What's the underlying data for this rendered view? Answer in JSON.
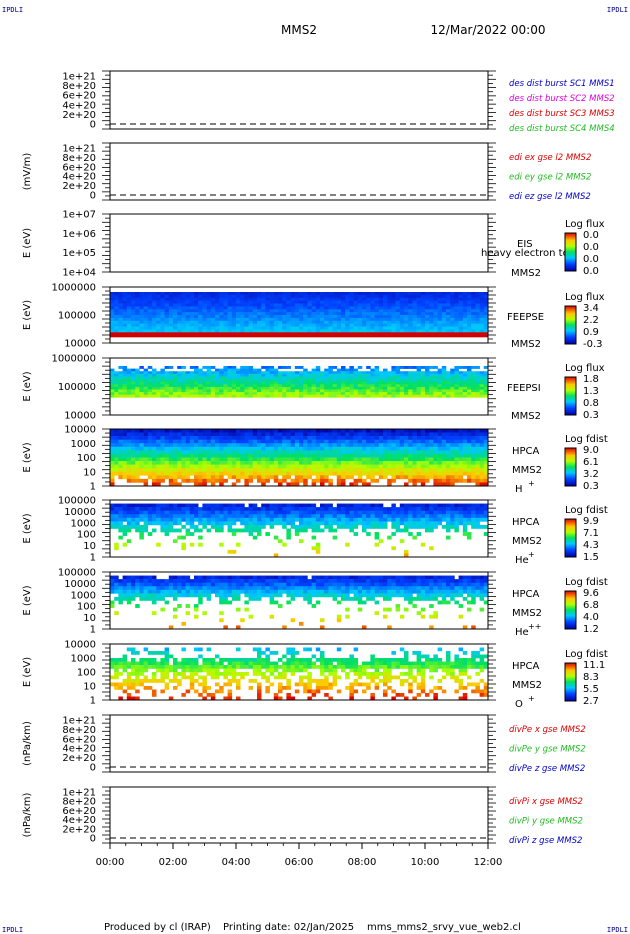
{
  "header": {
    "corner_tl": "IPDLI",
    "corner_tr": "IPDLI",
    "corner_bl": "IPDLI",
    "corner_br": "IPDLI",
    "spacecraft": "MMS2",
    "datetime": "12/Mar/2022 00:00"
  },
  "footer": {
    "produced": "Produced by cl (IRAP)",
    "printing": "Printing date: 02/Jan/2025",
    "file": "mms_mms2_srvy_vue_web2.cl"
  },
  "colors": {
    "black": "#000000",
    "red": "#dd0000",
    "green": "#22bb22",
    "blue": "#0000cc",
    "magenta": "#dd00dd"
  },
  "time_axis": {
    "start": "00:00",
    "end": "12:00",
    "ticks": [
      "00:00",
      "02:00",
      "04:00",
      "06:00",
      "08:00",
      "10:00",
      "12:00"
    ]
  },
  "chart_data": [
    {
      "id": "dist",
      "type": "line",
      "ylabel": "",
      "yticks": [
        "1e+21",
        "8e+20",
        "6e+20",
        "4e+20",
        "2e+20",
        "0"
      ],
      "legend": [
        {
          "text": "des dist burst SC1 MMS1",
          "color": "#0000cc"
        },
        {
          "text": "des dist burst SC2 MMS2",
          "color": "#dd00dd"
        },
        {
          "text": "des dist burst SC3 MMS3",
          "color": "#dd0000"
        },
        {
          "text": "des dist burst SC4 MMS4",
          "color": "#22bb22"
        }
      ]
    },
    {
      "id": "edi",
      "type": "line",
      "ylabel": "(mV/m)",
      "yticks": [
        "1e+21",
        "8e+20",
        "6e+20",
        "4e+20",
        "2e+20",
        "0"
      ],
      "legend": [
        {
          "text": "edi ex gse l2 MMS2",
          "color": "#dd0000"
        },
        {
          "text": "edi ey gse l2 MMS2",
          "color": "#22bb22"
        },
        {
          "text": "edi ez gse l2 MMS2",
          "color": "#0000cc"
        }
      ]
    },
    {
      "id": "eis",
      "type": "heatmap",
      "ylabel": "E (eV)",
      "yticks": [
        "1e+07",
        "1e+06",
        "1e+05",
        "1e+04"
      ],
      "labels": [
        "EIS",
        "heavy electron to",
        "MMS2"
      ],
      "cbar_title": "Log flux",
      "cbar_ticks": [
        "0.0",
        "0.0",
        "0.0",
        "0.0"
      ]
    },
    {
      "id": "feepse",
      "type": "heatmap",
      "ylabel": "E (eV)",
      "yticks": [
        "1000000",
        "100000",
        "10000"
      ],
      "labels": [
        "FEEPSE",
        "MMS2"
      ],
      "cbar_title": "Log flux",
      "cbar_ticks": [
        "3.4",
        "2.2",
        "0.9",
        "-0.3"
      ]
    },
    {
      "id": "feepsi",
      "type": "heatmap",
      "ylabel": "E (eV)",
      "yticks": [
        "1000000",
        "100000",
        "10000"
      ],
      "labels": [
        "FEEPSI",
        "MMS2"
      ],
      "cbar_title": "Log flux",
      "cbar_ticks": [
        "1.8",
        "1.3",
        "0.8",
        "0.3"
      ]
    },
    {
      "id": "hpca_h",
      "type": "heatmap",
      "ylabel": "E (eV)",
      "yticks": [
        "10000",
        "1000",
        "100",
        "10",
        "1"
      ],
      "labels": [
        "HPCA",
        "MMS2",
        "H",
        "+"
      ],
      "cbar_title": "Log fdist",
      "cbar_ticks": [
        "9.0",
        "6.1",
        "3.2",
        "0.3"
      ]
    },
    {
      "id": "hpca_he",
      "type": "heatmap",
      "ylabel": "E (eV)",
      "yticks": [
        "100000",
        "10000",
        "1000",
        "100",
        "10",
        "1"
      ],
      "labels": [
        "HPCA",
        "MMS2",
        "He",
        "+"
      ],
      "cbar_title": "Log fdist",
      "cbar_ticks": [
        "9.9",
        "7.1",
        "4.3",
        "1.5"
      ]
    },
    {
      "id": "hpca_he2",
      "type": "heatmap",
      "ylabel": "E (eV)",
      "yticks": [
        "100000",
        "10000",
        "1000",
        "100",
        "10",
        "1"
      ],
      "labels": [
        "HPCA",
        "MMS2",
        "He",
        "++"
      ],
      "cbar_title": "Log fdist",
      "cbar_ticks": [
        "9.6",
        "6.8",
        "4.0",
        "1.2"
      ]
    },
    {
      "id": "hpca_o",
      "type": "heatmap",
      "ylabel": "E (eV)",
      "yticks": [
        "10000",
        "1000",
        "100",
        "10",
        "1"
      ],
      "labels": [
        "HPCA",
        "MMS2",
        "O",
        "+"
      ],
      "cbar_title": "Log fdist",
      "cbar_ticks": [
        "11.1",
        "8.3",
        "5.5",
        "2.7"
      ]
    },
    {
      "id": "divpe",
      "type": "line",
      "ylabel": "(nPa/km)",
      "yticks": [
        "1e+21",
        "8e+20",
        "6e+20",
        "4e+20",
        "2e+20",
        "0"
      ],
      "legend": [
        {
          "text": "divPe x gse MMS2",
          "color": "#dd0000"
        },
        {
          "text": "divPe y gse MMS2",
          "color": "#22bb22"
        },
        {
          "text": "divPe z gse MMS2",
          "color": "#0000cc"
        }
      ]
    },
    {
      "id": "divpi",
      "type": "line",
      "ylabel": "(nPa/km)",
      "yticks": [
        "1e+21",
        "8e+20",
        "6e+20",
        "4e+20",
        "2e+20",
        "0"
      ],
      "legend": [
        {
          "text": "divPi x gse MMS2",
          "color": "#dd0000"
        },
        {
          "text": "divPi y gse MMS2",
          "color": "#22bb22"
        },
        {
          "text": "divPi z gse MMS2",
          "color": "#0000cc"
        }
      ]
    }
  ]
}
